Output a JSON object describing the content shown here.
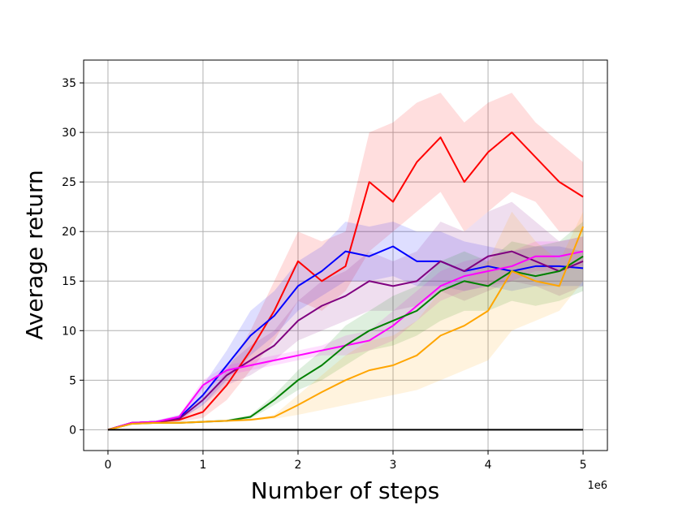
{
  "chart_data": {
    "type": "line",
    "xlabel": "Number of steps",
    "ylabel": "Average return",
    "x_offset_label": "1e6",
    "xlim": [
      -0.256,
      5.256
    ],
    "ylim": [
      -2.1,
      37.3
    ],
    "xticks": [
      0,
      1,
      2,
      3,
      4,
      5
    ],
    "yticks": [
      0,
      5,
      10,
      15,
      20,
      25,
      30,
      35
    ],
    "grid": true,
    "x": [
      0,
      0.25,
      0.5,
      0.75,
      1,
      1.25,
      1.5,
      1.75,
      2,
      2.25,
      2.5,
      2.75,
      3,
      3.25,
      3.5,
      3.75,
      4,
      4.25,
      4.5,
      4.75,
      5
    ],
    "series": [
      {
        "color": "#ff0000",
        "values": [
          0,
          0.7,
          0.8,
          1.0,
          1.8,
          4.5,
          8,
          12,
          17,
          15,
          16.5,
          25,
          23,
          27,
          29.5,
          25,
          28,
          30,
          27.5,
          25,
          23.5
        ],
        "lower": [
          0,
          0.6,
          0.7,
          0.8,
          1.2,
          3,
          6,
          9,
          13,
          12,
          14,
          18,
          20,
          22,
          24,
          20,
          22,
          24,
          23,
          20,
          20
        ],
        "upper": [
          0,
          0.8,
          0.9,
          1.3,
          2.5,
          6,
          10,
          15,
          20,
          19,
          20,
          30,
          31,
          33,
          34,
          31,
          33,
          34,
          31,
          29,
          27
        ]
      },
      {
        "color": "#0000ff",
        "values": [
          0,
          0.7,
          0.8,
          1.2,
          3.5,
          6.5,
          9.5,
          11.5,
          14.5,
          16,
          18,
          17.5,
          18.5,
          17,
          17,
          16,
          16.5,
          16,
          16.5,
          16.5,
          16.3
        ],
        "lower": [
          0,
          0.6,
          0.7,
          1,
          2.5,
          5,
          7.5,
          9.5,
          12,
          13.5,
          15,
          15,
          15.5,
          14.5,
          14.5,
          14,
          14.5,
          14,
          14.5,
          14.5,
          14.5
        ],
        "upper": [
          0,
          0.8,
          0.9,
          1.5,
          4.5,
          8,
          12,
          14,
          17,
          18.5,
          21,
          20.5,
          21,
          20,
          20,
          19,
          18.5,
          18,
          18.5,
          18.5,
          18
        ]
      },
      {
        "color": "#800080",
        "values": [
          0,
          0.7,
          0.8,
          1.1,
          3,
          5.5,
          7,
          8.5,
          11,
          12.5,
          13.5,
          15,
          14.5,
          15,
          17,
          16,
          17.5,
          18,
          17,
          16,
          17
        ],
        "lower": [
          0,
          0.6,
          0.7,
          0.9,
          2.5,
          4.5,
          5.5,
          7,
          9,
          10,
          11,
          12,
          12,
          12.5,
          14,
          13,
          14,
          15,
          14.5,
          13.5,
          14.5
        ],
        "upper": [
          0,
          0.8,
          0.9,
          1.3,
          3.5,
          6.5,
          8.5,
          10,
          13,
          15,
          16,
          18,
          17,
          18,
          21,
          20,
          22,
          23,
          21,
          19,
          19.5
        ]
      },
      {
        "color": "#ff00ff",
        "values": [
          0,
          0.7,
          0.8,
          1.3,
          4.5,
          6,
          6.5,
          7,
          7.5,
          8,
          8.5,
          9,
          10.5,
          12.5,
          14.5,
          15.5,
          16,
          16.5,
          17.5,
          17.5,
          18
        ],
        "lower": [
          0,
          0.6,
          0.7,
          1.1,
          4,
          5.5,
          6,
          6.5,
          7,
          7.5,
          7.5,
          8,
          9,
          11,
          13,
          14,
          14.5,
          15,
          16,
          16,
          16.5
        ],
        "upper": [
          0,
          0.8,
          0.9,
          1.5,
          5,
          6.5,
          7,
          7.5,
          8,
          8.5,
          9.5,
          10,
          12,
          14,
          16,
          17,
          17.5,
          18,
          19,
          19,
          19.5
        ]
      },
      {
        "color": "#008000",
        "values": [
          0,
          0.6,
          0.7,
          0.7,
          0.8,
          0.9,
          1.3,
          3,
          5,
          6.5,
          8.5,
          10,
          11,
          12,
          14,
          15,
          14.5,
          16,
          15.5,
          16,
          17.5
        ],
        "lower": [
          0,
          0.5,
          0.6,
          0.6,
          0.7,
          0.8,
          1.1,
          2.5,
          4,
          5,
          6.5,
          8,
          8.5,
          9.5,
          11,
          12,
          12,
          13,
          12.5,
          13,
          14
        ],
        "upper": [
          0,
          0.7,
          0.8,
          0.8,
          0.9,
          1,
          1.5,
          3.5,
          6,
          8,
          10.5,
          12,
          13.5,
          14.5,
          17,
          18,
          17,
          19,
          18.5,
          19,
          21
        ]
      },
      {
        "color": "#ffa500",
        "values": [
          0,
          0.6,
          0.7,
          0.7,
          0.8,
          0.9,
          1.0,
          1.3,
          2.5,
          3.8,
          5,
          6,
          6.5,
          7.5,
          9.5,
          10.5,
          12,
          16,
          15,
          14.5,
          20.5
        ],
        "lower": [
          0,
          0.5,
          0.6,
          0.6,
          0.7,
          0.8,
          0.9,
          1.1,
          1.5,
          2,
          2.5,
          3,
          3.5,
          4,
          5,
          6,
          7,
          10,
          11,
          12,
          15
        ],
        "upper": [
          0,
          0.7,
          0.8,
          0.8,
          0.9,
          1,
          1.1,
          1.5,
          3.5,
          5.5,
          7.5,
          9,
          9.5,
          11,
          14,
          15,
          17,
          22,
          19,
          17,
          22
        ]
      },
      {
        "color": "#000000",
        "values": [
          0,
          0,
          0,
          0,
          0,
          0,
          0,
          0,
          0,
          0,
          0,
          0,
          0,
          0,
          0,
          0,
          0,
          0,
          0,
          0,
          0
        ]
      }
    ]
  }
}
